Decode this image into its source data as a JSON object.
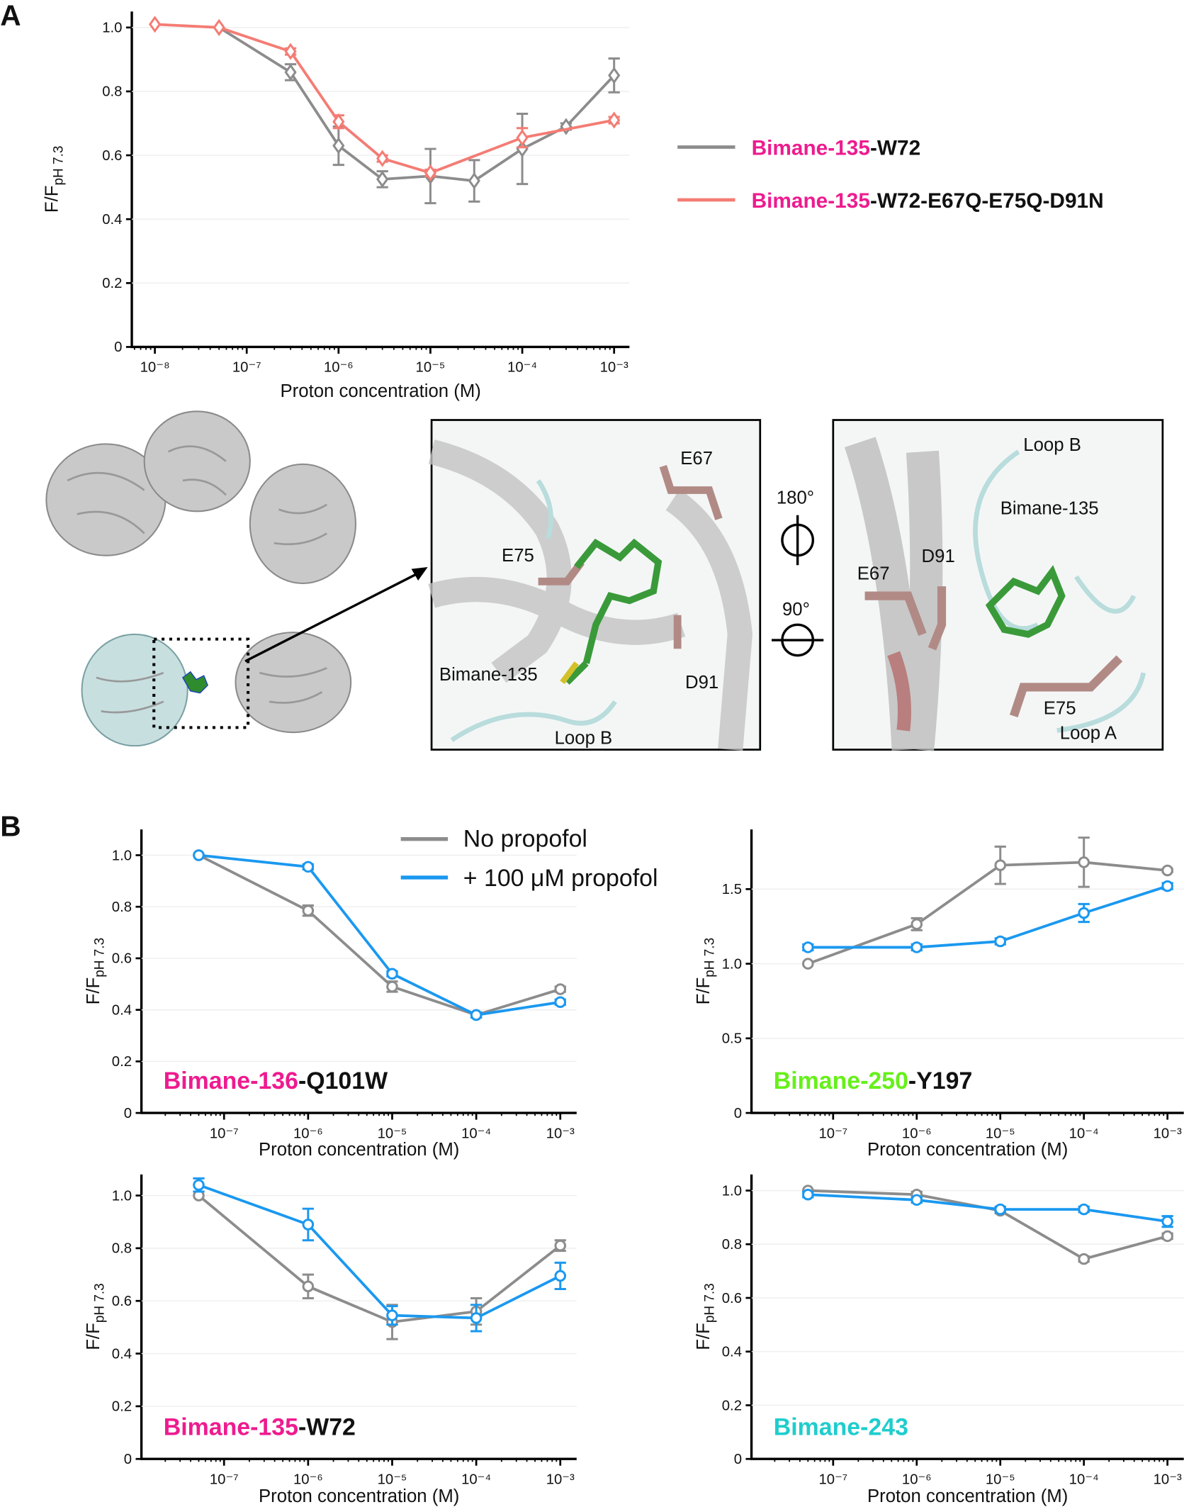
{
  "panels": {
    "a": "A",
    "b": "B"
  },
  "colors": {
    "gray": "#8c8c8c",
    "salmon": "#f47c74",
    "blue": "#1a98f0",
    "magenta": "#ee1b8f",
    "green": "#66f01a",
    "cyan": "#1fcdcd"
  },
  "legend_a": [
    {
      "prefix": "Bimane-135",
      "suffix": "-W72"
    },
    {
      "prefix": "Bimane-135",
      "suffix": "-W72-E67Q-E75Q-D91N"
    }
  ],
  "legend_b": [
    "No propofol",
    "+ 100 μM propofol"
  ],
  "structure": {
    "inset1": [
      "E67",
      "E75",
      "Bimane-135",
      "D91",
      "Loop B"
    ],
    "rotation": [
      "180°",
      "90°"
    ],
    "inset2": [
      "Loop B",
      "Bimane-135",
      "D91",
      "E67",
      "E75",
      "Loop A"
    ]
  },
  "chart_data": [
    {
      "id": "A",
      "type": "line",
      "xscale": "log",
      "xlabel": "Proton concentration (M)",
      "ylabel": "F/F",
      "ylabel_sub": "pH 7.3",
      "xticks": [
        "10⁻⁸",
        "10⁻⁷",
        "10⁻⁶",
        "10⁻⁵",
        "10⁻⁴",
        "10⁻³"
      ],
      "yticks": [
        "0",
        "0.2",
        "0.4",
        "0.6",
        "0.8",
        "1.0"
      ],
      "ytick_values": [
        0,
        0.2,
        0.4,
        0.6,
        0.8,
        1.0
      ],
      "ylim": [
        0,
        1.05
      ],
      "marker": "diamond",
      "series": [
        {
          "name": "Bimane-135-W72",
          "color": "#8c8c8c",
          "x": [
            5e-08,
            3e-07,
            1e-06,
            3e-06,
            1e-05,
            3e-05,
            0.0001,
            0.0003,
            0.001
          ],
          "y": [
            1.0,
            0.86,
            0.63,
            0.525,
            0.535,
            0.52,
            0.62,
            0.69,
            0.85
          ],
          "err": [
            0,
            0.025,
            0.06,
            0.025,
            0.085,
            0.065,
            0.11,
            0.01,
            0.053
          ]
        },
        {
          "name": "Bimane-135-W72-E67Q-E75Q-D91N",
          "color": "#f47c74",
          "x": [
            1e-08,
            5e-08,
            3e-07,
            1e-06,
            3e-06,
            1e-05,
            0.0001,
            0.001
          ],
          "y": [
            1.01,
            1.0,
            0.925,
            0.705,
            0.59,
            0.545,
            0.655,
            0.71
          ],
          "err": [
            0,
            0,
            0.01,
            0.02,
            0.01,
            0.01,
            0.03,
            0.01
          ]
        }
      ]
    },
    {
      "id": "B1",
      "type": "line",
      "xscale": "log",
      "xlabel": "Proton concentration (M)",
      "ylabel": "F/F",
      "ylabel_sub": "pH 7.3",
      "label_prefix": "Bimane-136",
      "label_suffix": "-Q101W",
      "label_color": "#ee1b8f",
      "xticks": [
        "10⁻⁷",
        "10⁻⁶",
        "10⁻⁵",
        "10⁻⁴",
        "10⁻³"
      ],
      "yticks": [
        "0",
        "0.2",
        "0.4",
        "0.6",
        "0.8",
        "1.0"
      ],
      "ytick_values": [
        0,
        0.2,
        0.4,
        0.6,
        0.8,
        1.0
      ],
      "ylim": [
        0,
        1.1
      ],
      "marker": "circle",
      "series": [
        {
          "name": "No propofol",
          "color": "#8c8c8c",
          "x": [
            5e-08,
            1e-06,
            1e-05,
            0.0001,
            0.001
          ],
          "y": [
            1.0,
            0.785,
            0.49,
            0.38,
            0.48
          ],
          "err": [
            0,
            0.02,
            0.02,
            0.01,
            0.01
          ]
        },
        {
          "name": "+ 100 μM propofol",
          "color": "#1a98f0",
          "x": [
            5e-08,
            1e-06,
            1e-05,
            0.0001,
            0.001
          ],
          "y": [
            1.0,
            0.955,
            0.54,
            0.38,
            0.43
          ],
          "err": [
            0,
            0.01,
            0.01,
            0.01,
            0.01
          ]
        }
      ]
    },
    {
      "id": "B2",
      "type": "line",
      "xscale": "log",
      "xlabel": "Proton concentration (M)",
      "ylabel": "F/F",
      "ylabel_sub": "pH 7.3",
      "label_prefix": "Bimane-250",
      "label_suffix": "-Y197",
      "label_color": "#66f01a",
      "xticks": [
        "10⁻⁷",
        "10⁻⁶",
        "10⁻⁵",
        "10⁻⁴",
        "10⁻³"
      ],
      "yticks": [
        "0",
        "0.5",
        "1.0",
        "1.5"
      ],
      "ytick_values": [
        0,
        0.5,
        1.0,
        1.5
      ],
      "ylim": [
        0,
        1.9
      ],
      "marker": "circle",
      "series": [
        {
          "name": "No propofol",
          "color": "#8c8c8c",
          "x": [
            5e-08,
            1e-06,
            1e-05,
            0.0001,
            0.001
          ],
          "y": [
            1.0,
            1.265,
            1.66,
            1.68,
            1.625
          ],
          "err": [
            0,
            0.04,
            0.125,
            0.165,
            0.01
          ]
        },
        {
          "name": "+ 100 μM propofol",
          "color": "#1a98f0",
          "x": [
            5e-08,
            1e-06,
            1e-05,
            0.0001,
            0.001
          ],
          "y": [
            1.11,
            1.11,
            1.15,
            1.34,
            1.52
          ],
          "err": [
            0.02,
            0.02,
            0.02,
            0.06,
            0.02
          ]
        }
      ]
    },
    {
      "id": "B3",
      "type": "line",
      "xscale": "log",
      "xlabel": "Proton concentration (M)",
      "ylabel": "F/F",
      "ylabel_sub": "pH 7.3",
      "label_prefix": "Bimane-135",
      "label_suffix": "-W72",
      "label_color": "#ee1b8f",
      "xticks": [
        "10⁻⁷",
        "10⁻⁶",
        "10⁻⁵",
        "10⁻⁴",
        "10⁻³"
      ],
      "yticks": [
        "0",
        "0.2",
        "0.4",
        "0.6",
        "0.8",
        "1.0"
      ],
      "ytick_values": [
        0,
        0.2,
        0.4,
        0.6,
        0.8,
        1.0
      ],
      "ylim": [
        0,
        1.08
      ],
      "marker": "circle",
      "series": [
        {
          "name": "No propofol",
          "color": "#8c8c8c",
          "x": [
            5e-08,
            1e-06,
            1e-05,
            0.0001,
            0.001
          ],
          "y": [
            1.0,
            0.655,
            0.52,
            0.56,
            0.81
          ],
          "err": [
            0,
            0.045,
            0.065,
            0.05,
            0.02
          ]
        },
        {
          "name": "+ 100 μM propofol",
          "color": "#1a98f0",
          "x": [
            5e-08,
            1e-06,
            1e-05,
            0.0001,
            0.001
          ],
          "y": [
            1.04,
            0.89,
            0.545,
            0.535,
            0.695
          ],
          "err": [
            0.025,
            0.06,
            0.035,
            0.05,
            0.05
          ]
        }
      ]
    },
    {
      "id": "B4",
      "type": "line",
      "xscale": "log",
      "xlabel": "Proton concentration (M)",
      "ylabel": "F/F",
      "ylabel_sub": "pH 7.3",
      "label_prefix": "Bimane-243",
      "label_suffix": "",
      "label_color": "#1fcdcd",
      "xticks": [
        "10⁻⁷",
        "10⁻⁶",
        "10⁻⁵",
        "10⁻⁴",
        "10⁻³"
      ],
      "yticks": [
        "0",
        "0.2",
        "0.4",
        "0.6",
        "0.8",
        "1.0"
      ],
      "ytick_values": [
        0,
        0.2,
        0.4,
        0.6,
        0.8,
        1.0
      ],
      "ylim": [
        0,
        1.06
      ],
      "marker": "circle",
      "series": [
        {
          "name": "No propofol",
          "color": "#8c8c8c",
          "x": [
            5e-08,
            1e-06,
            1e-05,
            0.0001,
            0.001
          ],
          "y": [
            1.0,
            0.985,
            0.925,
            0.745,
            0.83
          ],
          "err": [
            0,
            0.01,
            0.01,
            0.01,
            0.01
          ]
        },
        {
          "name": "+ 100 μM propofol",
          "color": "#1a98f0",
          "x": [
            5e-08,
            1e-06,
            1e-05,
            0.0001,
            0.001
          ],
          "y": [
            0.985,
            0.965,
            0.93,
            0.93,
            0.885
          ],
          "err": [
            0.01,
            0.01,
            0.01,
            0.01,
            0.02
          ]
        }
      ]
    }
  ]
}
